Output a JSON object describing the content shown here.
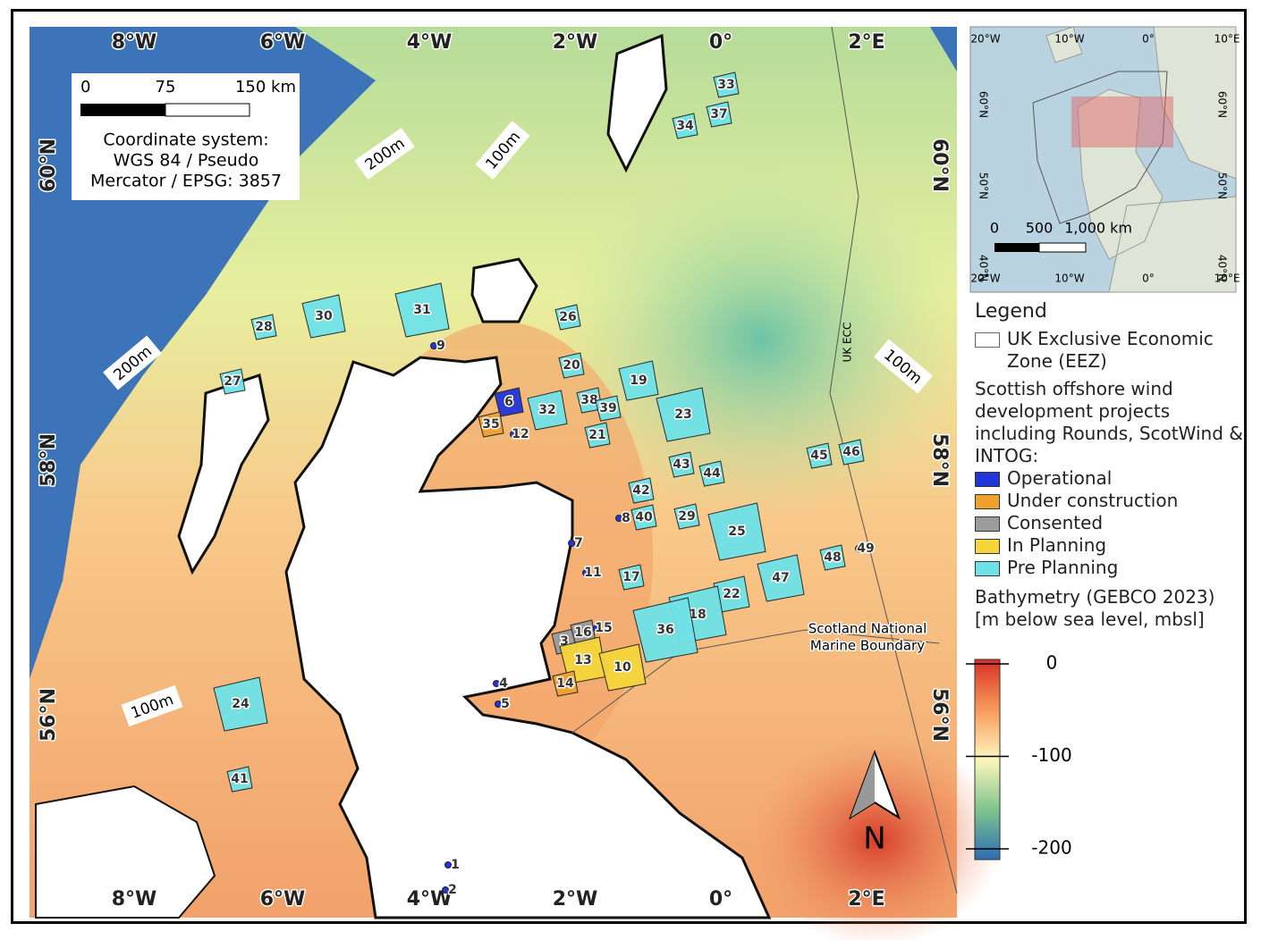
{
  "map": {
    "lon_labels_top": [
      "8°W",
      "6°W",
      "4°W",
      "2°W",
      "0°",
      "2°E"
    ],
    "lon_labels_bottom": [
      "8°W",
      "6°W",
      "4°W",
      "2°W",
      "0°",
      "2°E"
    ],
    "lat_labels_left": [
      "60°N",
      "58°N",
      "56°N"
    ],
    "lat_labels_right": [
      "60°N",
      "58°N",
      "56°N"
    ],
    "scale_labels": [
      "0",
      "75",
      "150 km"
    ],
    "crs_note": [
      "Coordinate system:",
      "WGS 84 / Pseudo",
      "Mercator / EPSG: 3857"
    ],
    "contour_labels": [
      "200m",
      "100m",
      "200m",
      "100m",
      "100m"
    ],
    "boundary_labels": [
      "UK ECC",
      "Scotland National",
      "Marine Boundary"
    ],
    "north_arrow": "N",
    "projects": [
      {
        "label": "33",
        "status": "Pre Planning"
      },
      {
        "label": "37",
        "status": "Pre Planning"
      },
      {
        "label": "34",
        "status": "Pre Planning"
      },
      {
        "label": "31",
        "status": "Pre Planning"
      },
      {
        "label": "30",
        "status": "Pre Planning"
      },
      {
        "label": "28",
        "status": "Pre Planning"
      },
      {
        "label": "26",
        "status": "Pre Planning"
      },
      {
        "label": "9",
        "status": "Operational"
      },
      {
        "label": "20",
        "status": "Pre Planning"
      },
      {
        "label": "19",
        "status": "Pre Planning"
      },
      {
        "label": "27",
        "status": "Pre Planning"
      },
      {
        "label": "6",
        "status": "Operational"
      },
      {
        "label": "38",
        "status": "Pre Planning"
      },
      {
        "label": "39",
        "status": "Pre Planning"
      },
      {
        "label": "32",
        "status": "Pre Planning"
      },
      {
        "label": "23",
        "status": "Pre Planning"
      },
      {
        "label": "35",
        "status": "Under construction"
      },
      {
        "label": "12",
        "status": "Operational"
      },
      {
        "label": "21",
        "status": "Pre Planning"
      },
      {
        "label": "45",
        "status": "Pre Planning"
      },
      {
        "label": "46",
        "status": "Pre Planning"
      },
      {
        "label": "43",
        "status": "Pre Planning"
      },
      {
        "label": "44",
        "status": "Pre Planning"
      },
      {
        "label": "42",
        "status": "Pre Planning"
      },
      {
        "label": "8",
        "status": "Operational"
      },
      {
        "label": "40",
        "status": "Pre Planning"
      },
      {
        "label": "29",
        "status": "Pre Planning"
      },
      {
        "label": "25",
        "status": "Pre Planning"
      },
      {
        "label": "7",
        "status": "Operational"
      },
      {
        "label": "49",
        "status": "Operational"
      },
      {
        "label": "48",
        "status": "Pre Planning"
      },
      {
        "label": "11",
        "status": "Operational"
      },
      {
        "label": "17",
        "status": "Pre Planning"
      },
      {
        "label": "47",
        "status": "Pre Planning"
      },
      {
        "label": "22",
        "status": "Pre Planning"
      },
      {
        "label": "18",
        "status": "Pre Planning"
      },
      {
        "label": "36",
        "status": "Pre Planning"
      },
      {
        "label": "3",
        "status": "Consented"
      },
      {
        "label": "16",
        "status": "Consented"
      },
      {
        "label": "15",
        "status": "Operational"
      },
      {
        "label": "13",
        "status": "In Planning"
      },
      {
        "label": "10",
        "status": "In Planning"
      },
      {
        "label": "4",
        "status": "Operational"
      },
      {
        "label": "14",
        "status": "Under construction"
      },
      {
        "label": "5",
        "status": "Operational"
      },
      {
        "label": "24",
        "status": "Pre Planning"
      },
      {
        "label": "41",
        "status": "Pre Planning"
      },
      {
        "label": "1",
        "status": "Operational"
      },
      {
        "label": "2",
        "status": "Operational"
      }
    ]
  },
  "inset": {
    "lon_labels_top": [
      "20°W",
      "10°W",
      "0°",
      "10°E"
    ],
    "lon_labels_bottom": [
      "20°W",
      "10°W",
      "0°",
      "10°E"
    ],
    "lat_labels_left": [
      "60°N",
      "50°N",
      "40°N"
    ],
    "lat_labels_right": [
      "60°N",
      "50°N",
      "40°N"
    ],
    "scale_labels": [
      "0",
      "500",
      "1,000 km"
    ]
  },
  "legend": {
    "title": "Legend",
    "eez": "UK Exclusive Economic Zone (EEZ)",
    "projects_heading": "Scottish offshore wind development projects including Rounds, ScotWind & INTOG:",
    "statuses": [
      {
        "name": "Operational",
        "color": "#2236d8"
      },
      {
        "name": "Under construction",
        "color": "#efa12e"
      },
      {
        "name": "Consented",
        "color": "#9b9b9b"
      },
      {
        "name": "In Planning",
        "color": "#f4d63a"
      },
      {
        "name": "Pre Planning",
        "color": "#6fe2e8"
      }
    ],
    "bathymetry_title": "Bathymetry (GEBCO 2023) [m below sea level, mbsl]",
    "bathymetry_ticks": [
      0,
      -100,
      -200
    ]
  }
}
